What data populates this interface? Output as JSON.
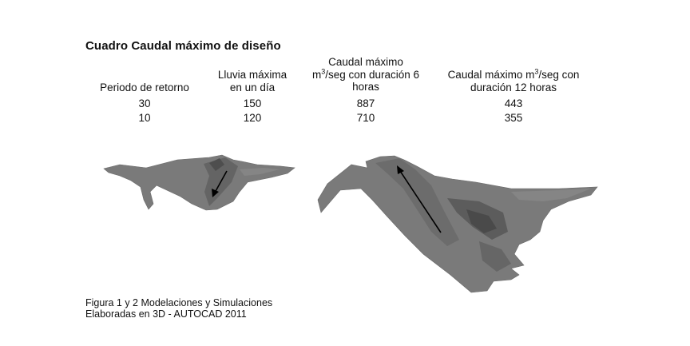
{
  "document": {
    "title": "Cuadro Caudal máximo de diseño",
    "table": {
      "headers": [
        {
          "lines": [
            "Periodo de retorno"
          ]
        },
        {
          "lines": [
            "Lluvia máxima",
            "en un día"
          ]
        },
        {
          "lines": [
            "Caudal máximo",
            "m3/seg con duración 6",
            "horas"
          ]
        },
        {
          "lines": [
            "Caudal máximo m3/seg con",
            "duración 12 horas"
          ]
        }
      ],
      "rows": [
        [
          "30",
          "150",
          "887",
          "443"
        ],
        [
          "10",
          "120",
          "710",
          "355"
        ]
      ]
    },
    "caption": {
      "line1": "Figura 1 y 2  Modelaciones y Simulaciones",
      "line2": "Elaboradas en 3D -  AUTOCAD 2011"
    }
  },
  "colors": {
    "terrain": "#7a7a7a",
    "terrain_dark": "#5a5a5a",
    "arrow": "#000000"
  }
}
